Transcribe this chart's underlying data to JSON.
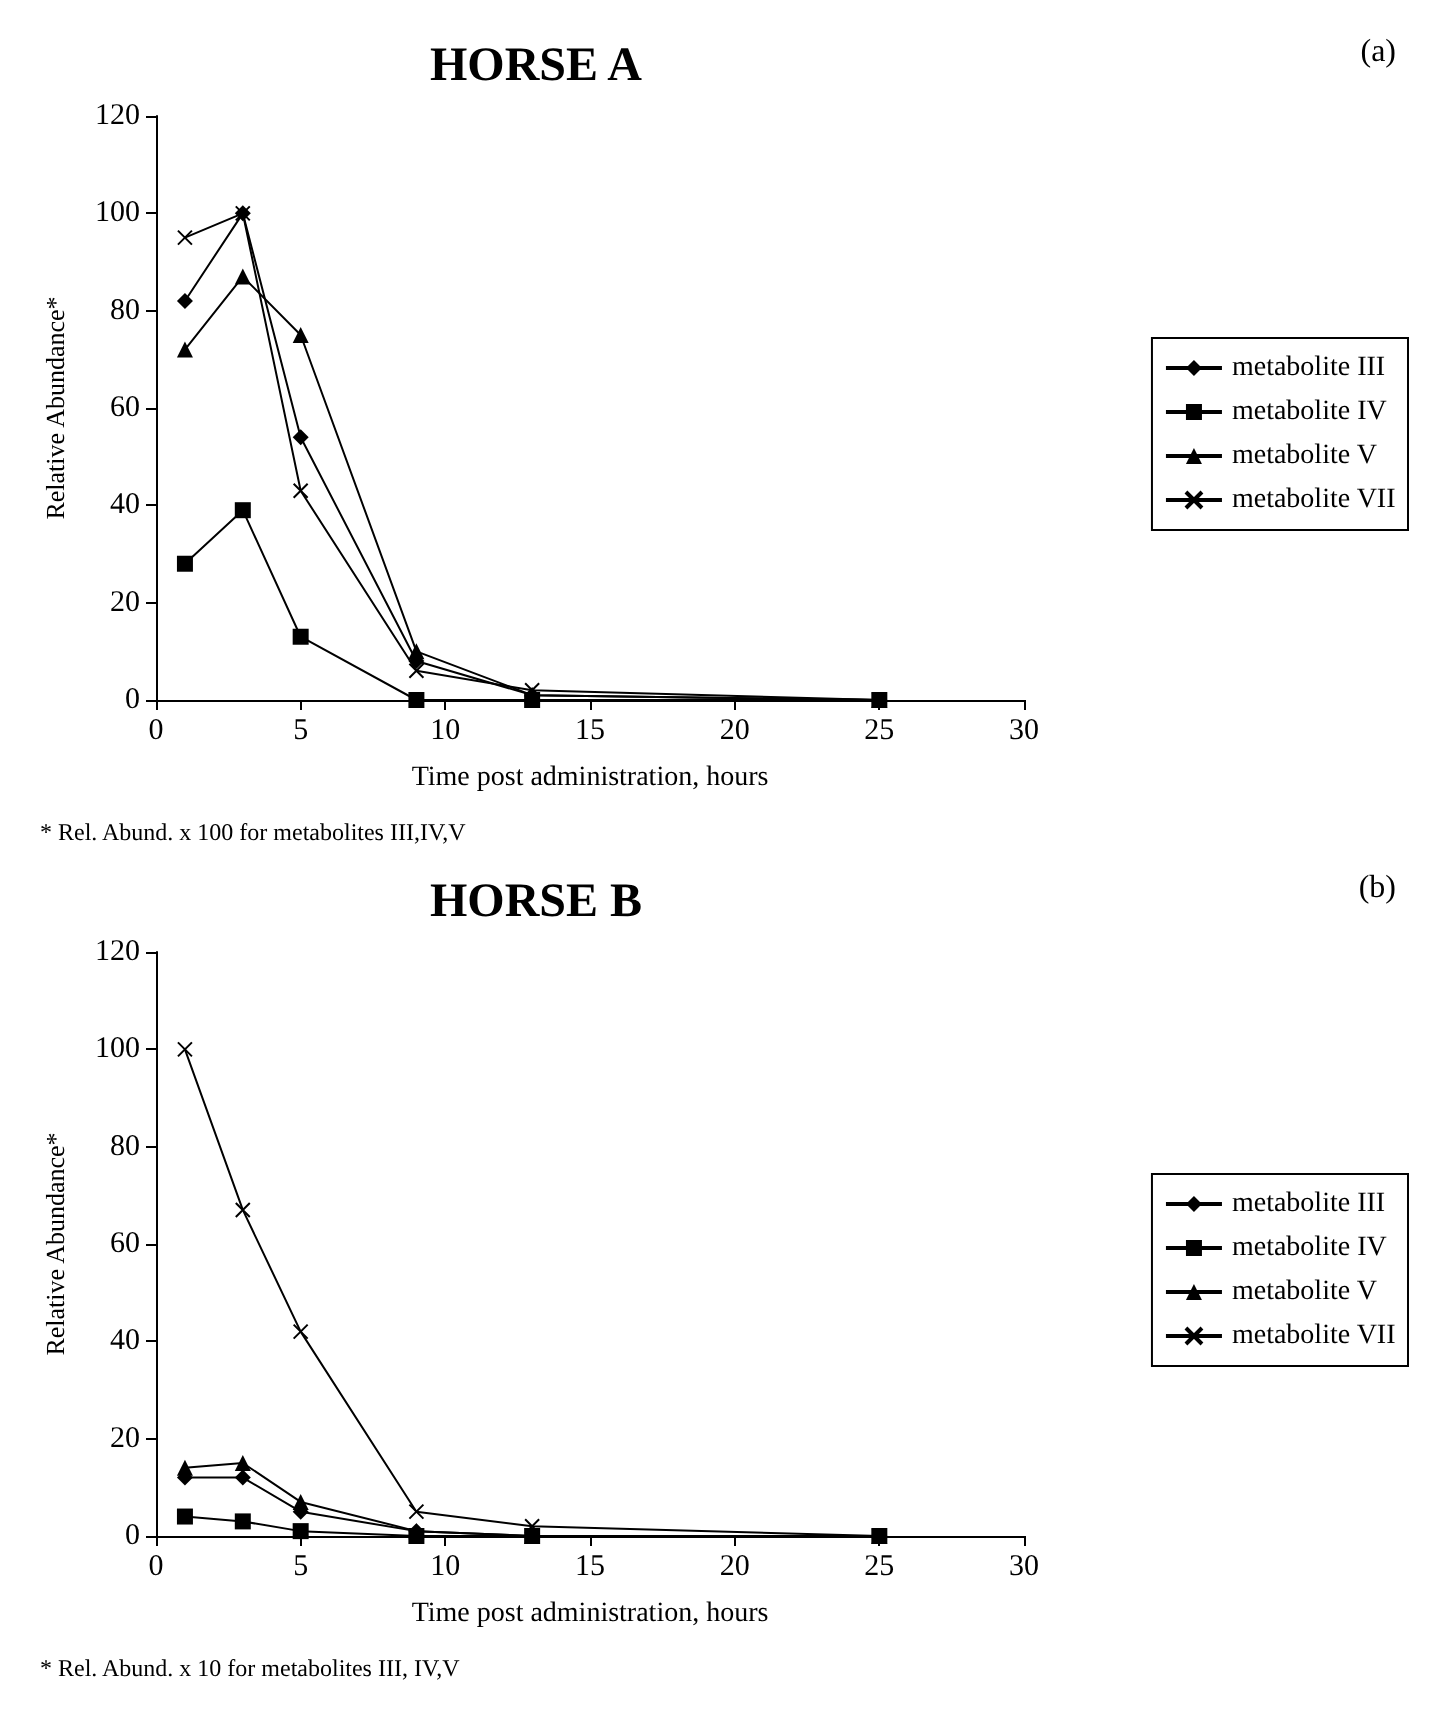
{
  "chart_data": [
    {
      "type": "line",
      "title": "HORSE A",
      "xlabel": "Time post administration, hours",
      "ylabel": "Relative Abundance*",
      "annotations": [
        "(a)",
        "* Rel. Abund. x 100 for metabolites III,IV,V"
      ],
      "x": [
        1,
        3,
        5,
        9,
        13,
        25
      ],
      "xlim": [
        0,
        30
      ],
      "xticks": [
        0,
        5,
        10,
        15,
        20,
        25,
        30
      ],
      "ylim": [
        0,
        120
      ],
      "yticks": [
        0,
        20,
        40,
        60,
        80,
        100,
        120
      ],
      "grid": false,
      "legend": "right",
      "series": [
        {
          "name": "metabolite III",
          "color": "#000000",
          "marker": "diamond",
          "values": [
            82,
            100,
            54,
            8,
            1,
            0
          ]
        },
        {
          "name": "metabolite IV",
          "color": "#000000",
          "marker": "square",
          "values": [
            28,
            39,
            13,
            0,
            0,
            0
          ]
        },
        {
          "name": "metabolite V",
          "color": "#000000",
          "marker": "triangle",
          "values": [
            72,
            87,
            75,
            10,
            1,
            0
          ]
        },
        {
          "name": "metabolite VII",
          "color": "#000000",
          "marker": "cross",
          "values": [
            95,
            100,
            43,
            6,
            2,
            0
          ]
        }
      ]
    },
    {
      "type": "line",
      "title": "HORSE B",
      "xlabel": "Time post administration, hours",
      "ylabel": "Relative Abundance*",
      "annotations": [
        "(b)",
        "* Rel. Abund. x 10 for metabolites III, IV,V"
      ],
      "x": [
        1,
        3,
        5,
        9,
        13,
        25
      ],
      "xlim": [
        0,
        30
      ],
      "xticks": [
        0,
        5,
        10,
        15,
        20,
        25,
        30
      ],
      "ylim": [
        0,
        120
      ],
      "yticks": [
        0,
        20,
        40,
        60,
        80,
        100,
        120
      ],
      "grid": false,
      "legend": "right",
      "series": [
        {
          "name": "metabolite III",
          "color": "#000000",
          "marker": "diamond",
          "values": [
            12,
            12,
            5,
            1,
            0,
            0
          ]
        },
        {
          "name": "metabolite IV",
          "color": "#000000",
          "marker": "square",
          "values": [
            4,
            3,
            1,
            0,
            0,
            0
          ]
        },
        {
          "name": "metabolite V",
          "color": "#000000",
          "marker": "triangle",
          "values": [
            14,
            15,
            7,
            1,
            0,
            0
          ]
        },
        {
          "name": "metabolite VII",
          "color": "#000000",
          "marker": "cross",
          "values": [
            100,
            67,
            42,
            5,
            2,
            0
          ]
        }
      ]
    }
  ]
}
